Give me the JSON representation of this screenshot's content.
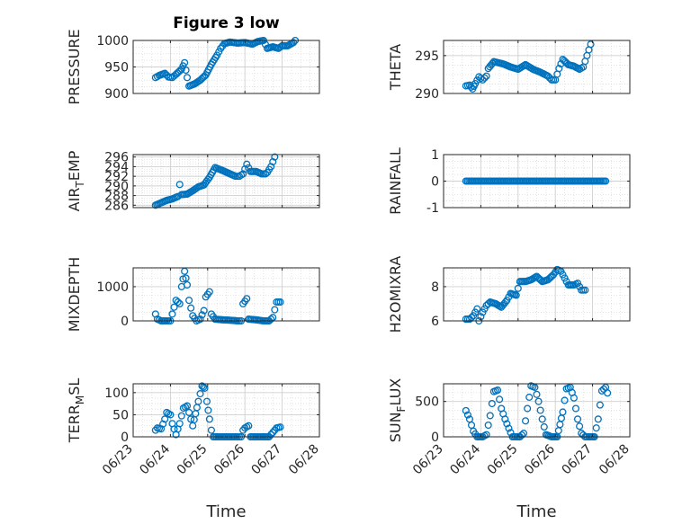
{
  "figure": {
    "title": "Figure 3 low",
    "xlabel": "Time"
  },
  "colors": {
    "marker": "#0072BD",
    "axis": "#262626",
    "grid": "#d9d9d9",
    "title": "#000000"
  },
  "chart_data": [
    {
      "type": "scatter",
      "ylabel": "PRESSURE",
      "title": "Figure 3 low",
      "xlim": [
        0,
        5
      ],
      "ylim": [
        900,
        1000
      ],
      "yticks": [
        900,
        950,
        1000
      ],
      "ytick_labels": [
        "900",
        "950",
        "1000"
      ],
      "xticks": [
        0,
        1,
        2,
        3,
        4,
        5
      ],
      "xtick_labels": [],
      "xaxis_label": "",
      "grid": true,
      "keypoints": [
        [
          0.6,
          930
        ],
        [
          0.7,
          934
        ],
        [
          0.85,
          938
        ],
        [
          0.95,
          931
        ],
        [
          1.05,
          930
        ],
        [
          1.15,
          936
        ],
        [
          1.3,
          946
        ],
        [
          1.38,
          958
        ],
        [
          1.45,
          930
        ],
        [
          1.5,
          914
        ],
        [
          1.65,
          918
        ],
        [
          1.8,
          925
        ],
        [
          1.95,
          935
        ],
        [
          2.1,
          955
        ],
        [
          2.25,
          972
        ],
        [
          2.35,
          985
        ],
        [
          2.45,
          994
        ],
        [
          2.6,
          997
        ],
        [
          2.8,
          995
        ],
        [
          3.0,
          996
        ],
        [
          3.2,
          993
        ],
        [
          3.35,
          998
        ],
        [
          3.5,
          1000
        ],
        [
          3.6,
          985
        ],
        [
          3.75,
          988
        ],
        [
          3.9,
          985
        ],
        [
          4.0,
          990
        ],
        [
          4.15,
          990
        ],
        [
          4.3,
          996
        ],
        [
          4.35,
          1000
        ]
      ]
    },
    {
      "type": "scatter",
      "ylabel": "THETA",
      "xlim": [
        0,
        5
      ],
      "ylim": [
        290,
        297
      ],
      "yticks": [
        290,
        295
      ],
      "ytick_labels": [
        "290",
        "295"
      ],
      "xticks": [
        0,
        1,
        2,
        3,
        4,
        5
      ],
      "xtick_labels": [],
      "xaxis_label": "",
      "grid": true,
      "keypoints": [
        [
          0.6,
          291
        ],
        [
          0.7,
          291.1
        ],
        [
          0.78,
          290.6
        ],
        [
          0.85,
          291.3
        ],
        [
          0.95,
          292.2
        ],
        [
          1.05,
          291.8
        ],
        [
          1.15,
          292.3
        ],
        [
          1.2,
          293.3
        ],
        [
          1.35,
          294.2
        ],
        [
          1.6,
          293.9
        ],
        [
          1.8,
          293.5
        ],
        [
          2.0,
          293.2
        ],
        [
          2.2,
          293.8
        ],
        [
          2.4,
          293.2
        ],
        [
          2.6,
          292.8
        ],
        [
          2.8,
          292.3
        ],
        [
          2.9,
          291.8
        ],
        [
          3.0,
          291.8
        ],
        [
          3.1,
          293.3
        ],
        [
          3.2,
          294.5
        ],
        [
          3.35,
          293.8
        ],
        [
          3.5,
          293.6
        ],
        [
          3.65,
          293.2
        ],
        [
          3.75,
          293.5
        ],
        [
          3.85,
          295
        ],
        [
          3.95,
          296.5
        ]
      ]
    },
    {
      "type": "scatter",
      "ylabel": "AIR_TEMP",
      "xlim": [
        0,
        5
      ],
      "ylim": [
        285.5,
        296.5
      ],
      "yticks": [
        286,
        288,
        290,
        292,
        294,
        296
      ],
      "ytick_labels": [
        "286",
        "288",
        "290",
        "292",
        "294",
        "296"
      ],
      "xticks": [
        0,
        1,
        2,
        3,
        4,
        5
      ],
      "xtick_labels": [],
      "xaxis_label": "",
      "grid": true,
      "keypoints": [
        [
          0.6,
          286
        ],
        [
          0.75,
          286.5
        ],
        [
          0.9,
          287
        ],
        [
          1.05,
          287.3
        ],
        [
          1.2,
          287.8
        ],
        [
          1.25,
          290.3
        ],
        [
          1.3,
          288.2
        ],
        [
          1.45,
          288.3
        ],
        [
          1.6,
          289
        ],
        [
          1.75,
          289.8
        ],
        [
          1.9,
          290.2
        ],
        [
          2.05,
          291.8
        ],
        [
          2.2,
          293.8
        ],
        [
          2.4,
          293.2
        ],
        [
          2.6,
          292.5
        ],
        [
          2.75,
          292
        ],
        [
          2.85,
          292
        ],
        [
          2.95,
          292.5
        ],
        [
          3.05,
          294.5
        ],
        [
          3.15,
          293
        ],
        [
          3.3,
          293
        ],
        [
          3.45,
          292.5
        ],
        [
          3.55,
          292.5
        ],
        [
          3.6,
          292.8
        ],
        [
          3.7,
          294
        ],
        [
          3.8,
          296
        ]
      ]
    },
    {
      "type": "scatter",
      "ylabel": "RAINFALL",
      "xlim": [
        0,
        5
      ],
      "ylim": [
        -1,
        1
      ],
      "yticks": [
        -1,
        0,
        1
      ],
      "ytick_labels": [
        "-1",
        "0",
        "1"
      ],
      "xticks": [
        0,
        1,
        2,
        3,
        4,
        5
      ],
      "xtick_labels": [],
      "xaxis_label": "",
      "grid": true,
      "keypoints": [
        [
          0.6,
          0
        ],
        [
          4.35,
          0
        ]
      ]
    },
    {
      "type": "scatter",
      "ylabel": "MIXDEPTH",
      "xlim": [
        0,
        5
      ],
      "ylim": [
        0,
        1550
      ],
      "yticks": [
        0,
        1000
      ],
      "ytick_labels": [
        "0",
        "1000"
      ],
      "xticks": [
        0,
        1,
        2,
        3,
        4,
        5
      ],
      "xtick_labels": [],
      "xaxis_label": "",
      "grid": true,
      "keypoints": [
        [
          0.6,
          200
        ],
        [
          0.65,
          50
        ],
        [
          0.75,
          0
        ],
        [
          0.9,
          0
        ],
        [
          1.0,
          0
        ],
        [
          1.05,
          200
        ],
        [
          1.15,
          600
        ],
        [
          1.25,
          500
        ],
        [
          1.3,
          1000
        ],
        [
          1.38,
          1450
        ],
        [
          1.45,
          1050
        ],
        [
          1.5,
          600
        ],
        [
          1.6,
          150
        ],
        [
          1.7,
          0
        ],
        [
          1.8,
          50
        ],
        [
          1.9,
          300
        ],
        [
          1.95,
          700
        ],
        [
          2.05,
          850
        ],
        [
          2.1,
          200
        ],
        [
          2.2,
          50
        ],
        [
          2.4,
          30
        ],
        [
          2.6,
          20
        ],
        [
          2.8,
          0
        ],
        [
          2.9,
          0
        ],
        [
          2.95,
          500
        ],
        [
          3.05,
          650
        ],
        [
          3.1,
          50
        ],
        [
          3.3,
          30
        ],
        [
          3.5,
          0
        ],
        [
          3.65,
          0
        ],
        [
          3.75,
          100
        ],
        [
          3.85,
          550
        ],
        [
          3.95,
          550
        ]
      ]
    },
    {
      "type": "scatter",
      "ylabel": "H2OMIXRA",
      "xlim": [
        0,
        5
      ],
      "ylim": [
        6,
        9.1
      ],
      "yticks": [
        6,
        8
      ],
      "ytick_labels": [
        "6",
        "8"
      ],
      "xticks": [
        0,
        1,
        2,
        3,
        4,
        5
      ],
      "xtick_labels": [],
      "xaxis_label": "",
      "grid": true,
      "keypoints": [
        [
          0.6,
          6.1
        ],
        [
          0.7,
          6.1
        ],
        [
          0.8,
          6.3
        ],
        [
          0.9,
          6.7
        ],
        [
          0.95,
          6.0
        ],
        [
          1.05,
          6.5
        ],
        [
          1.15,
          6.9
        ],
        [
          1.25,
          7.1
        ],
        [
          1.4,
          7.0
        ],
        [
          1.55,
          6.8
        ],
        [
          1.7,
          7.2
        ],
        [
          1.8,
          7.6
        ],
        [
          1.95,
          7.5
        ],
        [
          2.05,
          8.3
        ],
        [
          2.2,
          8.3
        ],
        [
          2.35,
          8.4
        ],
        [
          2.5,
          8.6
        ],
        [
          2.65,
          8.3
        ],
        [
          2.8,
          8.4
        ],
        [
          2.95,
          8.7
        ],
        [
          3.05,
          9.0
        ],
        [
          3.15,
          8.9
        ],
        [
          3.25,
          8.5
        ],
        [
          3.35,
          8.1
        ],
        [
          3.5,
          8.1
        ],
        [
          3.6,
          8.2
        ],
        [
          3.7,
          7.8
        ],
        [
          3.8,
          7.8
        ]
      ]
    },
    {
      "type": "scatter",
      "ylabel": "TERR_MSL",
      "xlim": [
        0,
        5
      ],
      "ylim": [
        0,
        120
      ],
      "yticks": [
        0,
        50,
        100
      ],
      "ytick_labels": [
        "0",
        "50",
        "100"
      ],
      "xticks": [
        0,
        1,
        2,
        3,
        4,
        5
      ],
      "xtick_labels": [
        "06/23",
        "06/24",
        "06/25",
        "06/26",
        "06/27",
        "06/28"
      ],
      "xaxis_label": "Time",
      "grid": true,
      "keypoints": [
        [
          0.6,
          15
        ],
        [
          0.65,
          20
        ],
        [
          0.75,
          18
        ],
        [
          0.85,
          40
        ],
        [
          0.9,
          55
        ],
        [
          1.0,
          50
        ],
        [
          1.05,
          30
        ],
        [
          1.15,
          5
        ],
        [
          1.25,
          30
        ],
        [
          1.35,
          65
        ],
        [
          1.45,
          70
        ],
        [
          1.55,
          40
        ],
        [
          1.6,
          25
        ],
        [
          1.75,
          80
        ],
        [
          1.85,
          115
        ],
        [
          1.92,
          110
        ],
        [
          1.98,
          80
        ],
        [
          2.05,
          40
        ],
        [
          2.1,
          15
        ],
        [
          2.15,
          0
        ],
        [
          2.4,
          0
        ],
        [
          2.6,
          0
        ],
        [
          2.8,
          0
        ],
        [
          2.9,
          0
        ],
        [
          2.95,
          15
        ],
        [
          3.0,
          20
        ],
        [
          3.1,
          25
        ],
        [
          3.15,
          0
        ],
        [
          3.3,
          0
        ],
        [
          3.5,
          0
        ],
        [
          3.65,
          0
        ],
        [
          3.75,
          10
        ],
        [
          3.85,
          20
        ],
        [
          3.95,
          22
        ]
      ]
    },
    {
      "type": "scatter",
      "ylabel": "SUN_FLUX",
      "xlim": [
        0,
        5
      ],
      "ylim": [
        0,
        750
      ],
      "yticks": [
        0,
        500
      ],
      "ytick_labels": [
        "0",
        "500"
      ],
      "xticks": [
        0,
        1,
        2,
        3,
        4,
        5
      ],
      "xtick_labels": [
        "06/23",
        "06/24",
        "06/25",
        "06/26",
        "06/27",
        "06/28"
      ],
      "xaxis_label": "Time",
      "grid": true,
      "keypoints": [
        [
          0.6,
          370
        ],
        [
          0.7,
          250
        ],
        [
          0.8,
          80
        ],
        [
          0.9,
          0
        ],
        [
          1.05,
          0
        ],
        [
          1.15,
          30
        ],
        [
          1.25,
          300
        ],
        [
          1.35,
          640
        ],
        [
          1.45,
          660
        ],
        [
          1.55,
          400
        ],
        [
          1.65,
          250
        ],
        [
          1.75,
          120
        ],
        [
          1.85,
          0
        ],
        [
          2.05,
          0
        ],
        [
          2.15,
          50
        ],
        [
          2.25,
          400
        ],
        [
          2.35,
          720
        ],
        [
          2.45,
          700
        ],
        [
          2.55,
          500
        ],
        [
          2.65,
          250
        ],
        [
          2.75,
          30
        ],
        [
          2.9,
          0
        ],
        [
          3.05,
          0
        ],
        [
          3.2,
          350
        ],
        [
          3.3,
          680
        ],
        [
          3.4,
          700
        ],
        [
          3.5,
          550
        ],
        [
          3.6,
          250
        ],
        [
          3.7,
          50
        ],
        [
          3.8,
          0
        ],
        [
          3.9,
          0
        ],
        [
          4.05,
          0
        ],
        [
          4.15,
          250
        ],
        [
          4.25,
          650
        ],
        [
          4.35,
          700
        ],
        [
          4.4,
          620
        ]
      ]
    }
  ]
}
